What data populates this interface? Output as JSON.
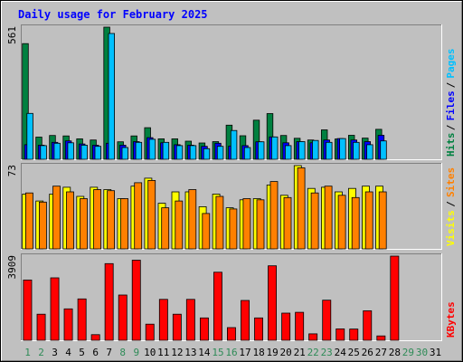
{
  "chart_data": {
    "type": "bar",
    "title": "Daily usage for February 2025",
    "x": [
      "1",
      "2",
      "3",
      "4",
      "5",
      "6",
      "7",
      "8",
      "9",
      "10",
      "11",
      "12",
      "13",
      "14",
      "15",
      "16",
      "17",
      "18",
      "19",
      "20",
      "21",
      "22",
      "23",
      "24",
      "25",
      "26",
      "27",
      "28",
      "29",
      "30",
      "31"
    ],
    "weekend_days": [
      "1",
      "2",
      "8",
      "9",
      "15",
      "16",
      "22",
      "23",
      "29",
      "30"
    ],
    "future_days": [
      "29",
      "30",
      "31"
    ],
    "panels": [
      {
        "max_label": "561",
        "ylim": [
          0,
          561
        ],
        "series": [
          {
            "name": "Hits",
            "color": "#008040",
            "values": [
              491,
              94,
              101,
              99,
              87,
              82,
              561,
              74,
              99,
              134,
              87,
              87,
              77,
              69,
              75,
              145,
              100,
              166,
              194,
              101,
              89,
              82,
              125,
              86,
              102,
              90,
              127,
              0,
              0,
              0,
              0
            ]
          },
          {
            "name": "Files",
            "color": "#0000ff",
            "values": [
              62,
              60,
              72,
              78,
              65,
              60,
              68,
              60,
              75,
              92,
              70,
              62,
              60,
              55,
              68,
              56,
              58,
              74,
              95,
              70,
              75,
              70,
              82,
              88,
              82,
              75,
              102,
              0,
              0,
              0,
              0
            ]
          },
          {
            "name": "Pages",
            "color": "#00c0ff",
            "values": [
              195,
              58,
              68,
              70,
              60,
              55,
              534,
              50,
              72,
              85,
              72,
              58,
              58,
              45,
              55,
              122,
              50,
              74,
              95,
              58,
              75,
              80,
              72,
              88,
              72,
              62,
              78,
              0,
              0,
              0,
              0
            ]
          }
        ]
      },
      {
        "max_label": "73",
        "ylim": [
          0,
          73
        ],
        "series": [
          {
            "name": "Visits",
            "color": "#ffff00",
            "values": [
              48,
              42,
              48,
              54,
              46,
              54,
              52,
              44,
              55,
              62,
              40,
              50,
              50,
              37,
              48,
              36,
              43,
              44,
              56,
              47,
              73,
              53,
              54,
              50,
              53,
              55,
              55,
              0,
              0,
              0,
              0
            ]
          },
          {
            "name": "Sites",
            "color": "#ff8000",
            "values": [
              49,
              41,
              55,
              50,
              44,
              52,
              51,
              44,
              58,
              60,
              36,
              42,
              52,
              31,
              46,
              35,
              44,
              43,
              59,
              45,
              71,
              49,
              55,
              47,
              45,
              50,
              50,
              0,
              0,
              0,
              0
            ]
          }
        ]
      },
      {
        "max_label": "3909",
        "ylim": [
          0,
          3909
        ],
        "series": [
          {
            "name": "KBytes",
            "color": "#ff0000",
            "values": [
              2800,
              1210,
              2900,
              1460,
              1920,
              260,
              3560,
              2100,
              3720,
              750,
              1900,
              1210,
              1900,
              1040,
              3160,
              590,
              1850,
              1040,
              3460,
              1260,
              1300,
              300,
              1860,
              530,
              520,
              1370,
              200,
              3909,
              0,
              0,
              0
            ]
          }
        ]
      }
    ]
  }
}
